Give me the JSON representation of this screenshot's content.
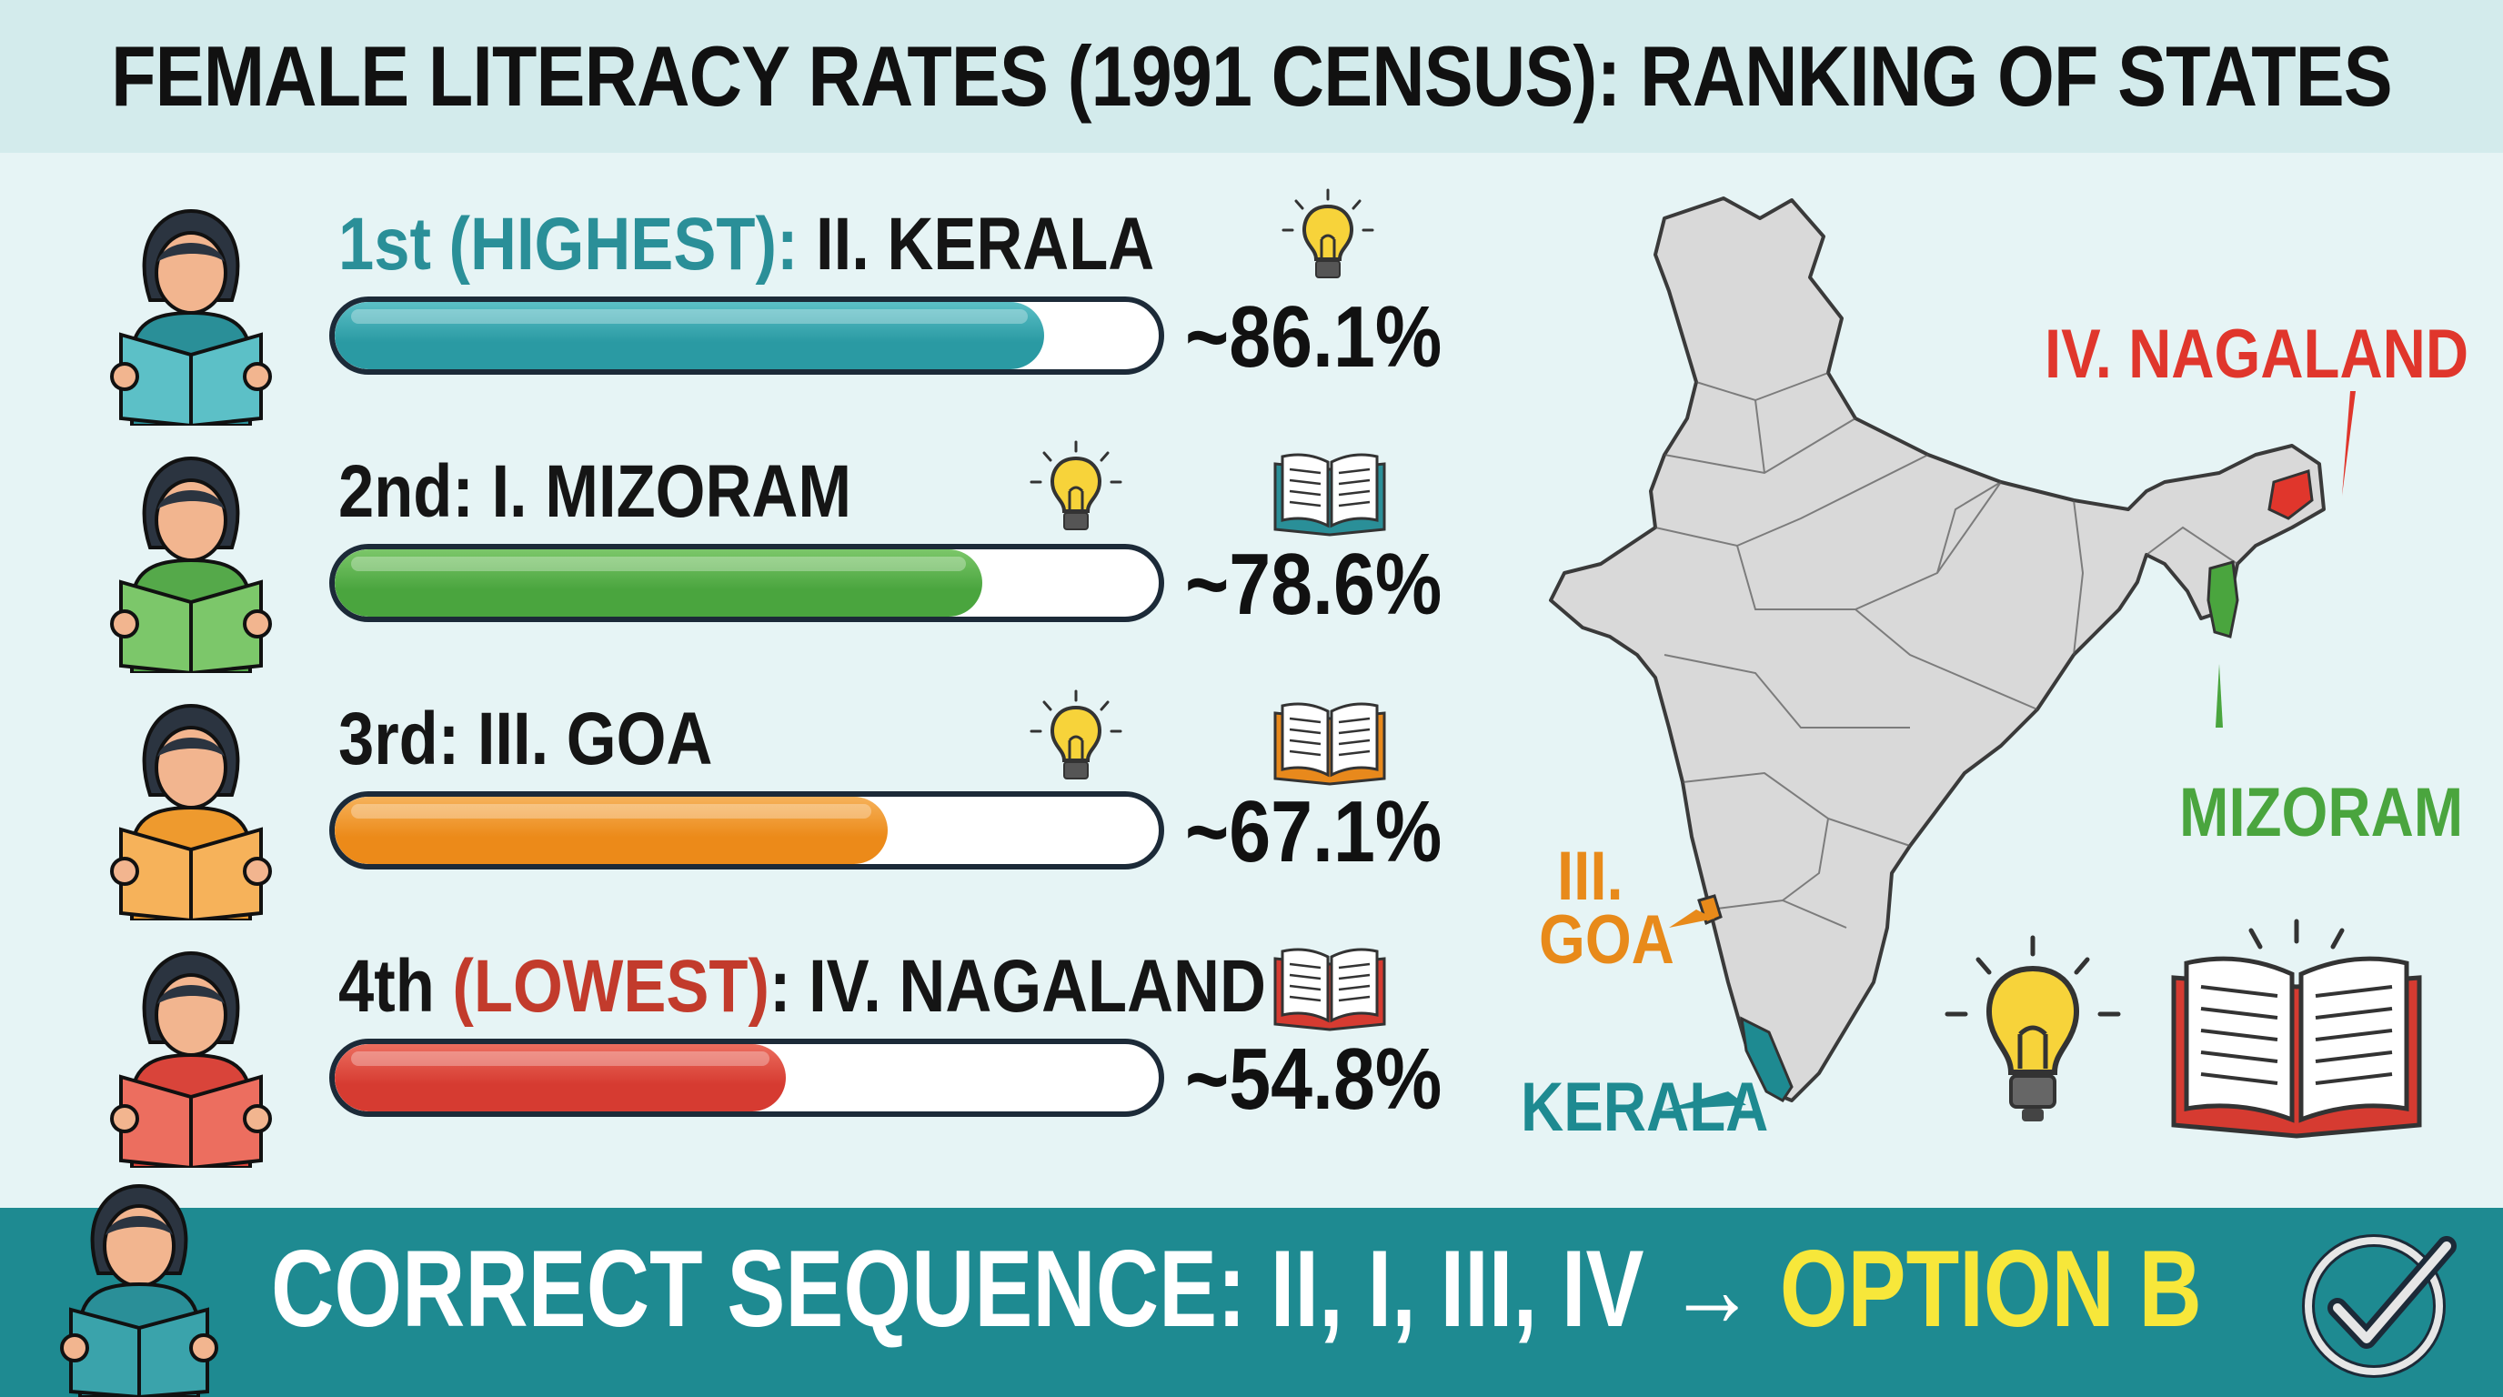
{
  "title": "FEMALE LITERACY RATES (1991 CENSUS): RANKING OF STATES",
  "chart_data": {
    "type": "bar",
    "title": "FEMALE LITERACY RATES (1991 CENSUS): RANKING OF STATES",
    "categories": [
      "II. KERALA",
      "I. MIZORAM",
      "III. GOA",
      "IV. NAGALAND"
    ],
    "values": [
      86.1,
      78.6,
      67.1,
      54.8
    ],
    "ylim": [
      0,
      100
    ],
    "orientation": "horizontal",
    "rows": [
      {
        "rank": "1st",
        "rank_note": "(HIGHEST)",
        "state": "II. KERALA",
        "value": 86.1,
        "value_label": "~86.1%",
        "color": "#2a9aa3",
        "light_color": "#5cc0c7",
        "avatar_color": "#2a8f98"
      },
      {
        "rank": "2nd",
        "rank_note": "",
        "state": "I. MIZORAM",
        "value": 78.6,
        "value_label": "~78.6%",
        "color": "#4aa53e",
        "light_color": "#7cc76a",
        "avatar_color": "#55a94a"
      },
      {
        "rank": "3rd",
        "rank_note": "",
        "state": "III. GOA",
        "value": 67.1,
        "value_label": "~67.1%",
        "color": "#ec8a19",
        "light_color": "#f6b25a",
        "avatar_color": "#ee9a2e"
      },
      {
        "rank": "4th",
        "rank_note": "(LOWEST)",
        "state": "IV. NAGALAND",
        "value": 54.8,
        "value_label": "~54.8%",
        "color": "#d63b31",
        "light_color": "#ec6e5f",
        "avatar_color": "#d9443a"
      }
    ]
  },
  "colors": {
    "teal": "#2a8f98",
    "rank1_text": "#2a8f98",
    "lowest_text": "#c23b2c",
    "nagaland": "#e0362c",
    "mizoram": "#4aa53e",
    "goa": "#e88a1a",
    "kerala": "#1e8a91",
    "map_fill": "#d9d9d9",
    "answer_highlight": "#f7e73a"
  },
  "map": {
    "labels": {
      "nagaland": "IV. NAGALAND",
      "mizoram": "MIZORAM",
      "goa_line1": "III.",
      "goa_line2": "GOA",
      "kerala": "KERALA"
    }
  },
  "answer": {
    "prefix": "CORRECT SEQUENCE: II, I, III, IV → ",
    "option": "OPTION B"
  },
  "icons": [
    "woman-reading-icon",
    "lightbulb-icon",
    "open-book-icon",
    "checkmark-icon"
  ]
}
